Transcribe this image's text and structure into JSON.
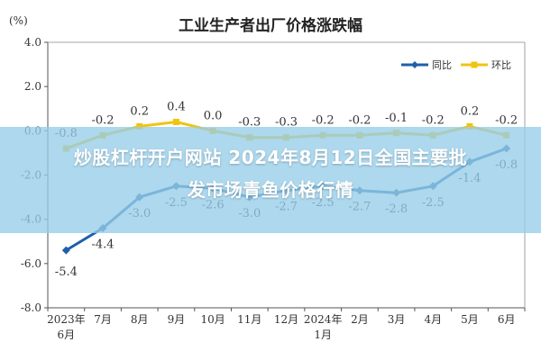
{
  "chart_data": {
    "type": "line",
    "title": "工业生产者出厂价格涨跌幅",
    "ylabel": "(%)",
    "ylim": [
      -8.0,
      4.0
    ],
    "yticks": [
      "4.0",
      "2.0",
      "0.0",
      "-2.0",
      "-4.0",
      "-6.0",
      "-8.0"
    ],
    "categories": [
      [
        "2023年",
        "6月"
      ],
      [
        "7月"
      ],
      [
        "8月"
      ],
      [
        "9月"
      ],
      [
        "10月"
      ],
      [
        "11月"
      ],
      [
        "12月"
      ],
      [
        "2024年",
        "1月"
      ],
      [
        "2月"
      ],
      [
        "3月"
      ],
      [
        "4月"
      ],
      [
        "5月"
      ],
      [
        "6月"
      ]
    ],
    "series": [
      {
        "name": "同比",
        "color": "#1f5fa8",
        "values": [
          -5.4,
          -4.4,
          -3.0,
          -2.5,
          -2.6,
          -3.0,
          -2.7,
          -2.5,
          -2.7,
          -2.8,
          -2.5,
          -1.4,
          -0.8
        ],
        "labels": [
          "-5.4",
          "-4.4",
          "-3.0",
          "-2.5",
          "-2.6",
          "-3.0",
          "-2.7",
          "-2.5",
          "-2.7",
          "-2.8",
          "-2.5",
          "-1.4",
          "-0.8"
        ]
      },
      {
        "name": "环比",
        "color": "#f2c40f",
        "values": [
          -0.8,
          -0.2,
          0.2,
          0.4,
          0.0,
          -0.3,
          -0.3,
          -0.2,
          -0.2,
          -0.1,
          -0.2,
          0.2,
          -0.2
        ],
        "labels": [
          "-0.8",
          "-0.2",
          "0.2",
          "0.4",
          "0.0",
          "-0.3",
          "-0.3",
          "-0.2",
          "-0.2",
          "-0.1",
          "-0.2",
          "0.2",
          "-0.2"
        ]
      }
    ],
    "legend_position": "top-right",
    "grid": false
  },
  "overlay": {
    "line1": "炒股杠杆开户网站 2024年8月12日全国主要批",
    "line2": "发市场青鱼价格行情"
  }
}
